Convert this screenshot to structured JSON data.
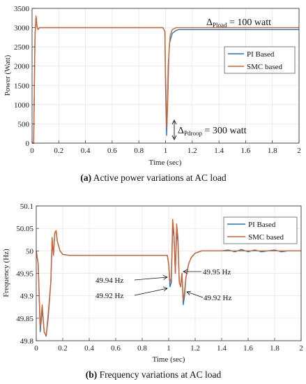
{
  "chart_data": [
    {
      "type": "line",
      "xlabel": "Time (sec)",
      "ylabel": "Power (Watt)",
      "xlim": [
        0,
        2
      ],
      "ylim": [
        0,
        3500
      ],
      "x_ticks": [
        "0",
        "0.2",
        "0.4",
        "0.6",
        "0.8",
        "1",
        "1.2",
        "1.4",
        "1.6",
        "1.8",
        "2"
      ],
      "y_ticks": [
        "0",
        "500",
        "1000",
        "1500",
        "2000",
        "2500",
        "3000",
        "3500"
      ],
      "grid": true,
      "legend_position": "right",
      "series": [
        {
          "name": "PI Based",
          "color": "#1f77c4",
          "x": [
            0,
            0.012,
            0.022,
            0.03,
            0.038,
            0.045,
            0.055,
            0.07,
            0.1,
            0.5,
            0.98,
            0.995,
            1.0,
            1.008,
            1.015,
            1.02,
            1.03,
            1.05,
            1.08,
            1.1,
            1.15,
            1.2,
            1.5,
            2.0
          ],
          "y": [
            0,
            0,
            2800,
            3300,
            3000,
            2950,
            3000,
            3000,
            3000,
            3000,
            3000,
            2900,
            1500,
            200,
            1000,
            2000,
            2600,
            2850,
            2930,
            2950,
            2950,
            2950,
            2950,
            2950
          ]
        },
        {
          "name": "SMC based",
          "color": "#d9622b",
          "x": [
            0,
            0.012,
            0.022,
            0.03,
            0.038,
            0.045,
            0.055,
            0.07,
            0.1,
            0.5,
            0.98,
            0.995,
            1.0,
            1.01,
            1.018,
            1.025,
            1.035,
            1.05,
            1.08,
            1.1,
            1.15,
            1.2,
            1.5,
            2.0
          ],
          "y": [
            0,
            0,
            2800,
            3300,
            3000,
            2950,
            3000,
            3000,
            3000,
            3000,
            3000,
            2900,
            1800,
            400,
            1300,
            2300,
            2800,
            2950,
            3000,
            3000,
            3000,
            3000,
            3000,
            3000
          ]
        }
      ],
      "annotations": {
        "load_delta": {
          "sym": "Δ",
          "sub": "Pload",
          "rest": " = 100 watt"
        },
        "droop_delta": {
          "sym": "Δ",
          "sub": "Pdroop",
          "rest": " = 300 watt"
        }
      },
      "caption": {
        "label": "(a)",
        "text": " Active power variations at AC load"
      }
    },
    {
      "type": "line",
      "xlabel": "Time (sec)",
      "ylabel": "Frequency (Hz)",
      "xlim": [
        0,
        2
      ],
      "ylim": [
        49.8,
        50.1
      ],
      "x_ticks": [
        "0",
        "0.2",
        "0.4",
        "0.6",
        "0.8",
        "1",
        "1.2",
        "1.4",
        "1.6",
        "1.8",
        "2"
      ],
      "y_ticks": [
        "49.8",
        "49.85",
        "49.9",
        "49.95",
        "50",
        "50.05",
        "50.1"
      ],
      "grid": true,
      "legend_position": "top-right",
      "series": [
        {
          "name": "PI Based",
          "color": "#1f77c4",
          "x": [
            0,
            0.015,
            0.03,
            0.045,
            0.06,
            0.075,
            0.09,
            0.11,
            0.12,
            0.13,
            0.14,
            0.15,
            0.16,
            0.17,
            0.18,
            0.2,
            0.25,
            0.5,
            0.99,
            1.0,
            1.01,
            1.02,
            1.03,
            1.04,
            1.05,
            1.06,
            1.07,
            1.08,
            1.09,
            1.1,
            1.11,
            1.12,
            1.13,
            1.15,
            1.17,
            1.2,
            1.25,
            1.3,
            1.4,
            1.45,
            1.5,
            1.55,
            1.6,
            1.65,
            1.7,
            1.75,
            1.8,
            1.85,
            1.9,
            1.95,
            2.0
          ],
          "y": [
            50,
            49.97,
            49.82,
            49.87,
            49.82,
            49.81,
            49.85,
            49.93,
            50.02,
            49.99,
            50.04,
            50.045,
            50.02,
            50.01,
            50.0,
            49.992,
            49.99,
            49.99,
            49.99,
            49.97,
            49.92,
            49.93,
            50.055,
            50.03,
            49.95,
            50.04,
            50.02,
            49.93,
            49.92,
            49.95,
            49.88,
            49.9,
            49.94,
            49.97,
            49.985,
            49.995,
            50.0,
            50.0,
            50.0,
            50.002,
            49.998,
            50.003,
            49.998,
            50.002,
            49.998,
            50.0,
            50.002,
            49.998,
            50.0,
            50.0,
            50.0
          ]
        },
        {
          "name": "SMC based",
          "color": "#d9622b",
          "x": [
            0,
            0.015,
            0.03,
            0.045,
            0.06,
            0.075,
            0.09,
            0.11,
            0.12,
            0.13,
            0.14,
            0.15,
            0.16,
            0.17,
            0.18,
            0.2,
            0.25,
            0.5,
            0.99,
            1.0,
            1.01,
            1.02,
            1.03,
            1.04,
            1.05,
            1.06,
            1.07,
            1.08,
            1.09,
            1.1,
            1.11,
            1.12,
            1.13,
            1.15,
            1.17,
            1.2,
            1.25,
            1.3,
            1.4,
            1.45,
            1.5,
            1.55,
            1.6,
            1.65,
            1.7,
            1.75,
            1.8,
            1.85,
            1.9,
            1.95,
            2.0
          ],
          "y": [
            50,
            49.97,
            49.83,
            49.88,
            49.82,
            49.81,
            49.86,
            49.93,
            50.03,
            49.99,
            50.04,
            50.045,
            50.02,
            50.01,
            50.0,
            49.992,
            49.99,
            49.99,
            49.99,
            49.97,
            49.93,
            49.94,
            50.07,
            50.04,
            49.95,
            50.06,
            50.03,
            49.93,
            49.92,
            49.95,
            49.89,
            49.91,
            49.94,
            49.97,
            49.985,
            49.995,
            50.0,
            50.0,
            50.0,
            50.0,
            50.0,
            50.0,
            50.0,
            50.0,
            50.0,
            50.0,
            50.0,
            50.0,
            50.0,
            50.0,
            50.0
          ]
        }
      ],
      "annotations": {
        "a1": "49.94 Hz",
        "a2": "49.92 Hz",
        "a3": "49.95 Hz",
        "a4": "49.92 Hz"
      },
      "caption": {
        "label": "(b)",
        "text": " Frequency variations at AC load"
      }
    }
  ]
}
